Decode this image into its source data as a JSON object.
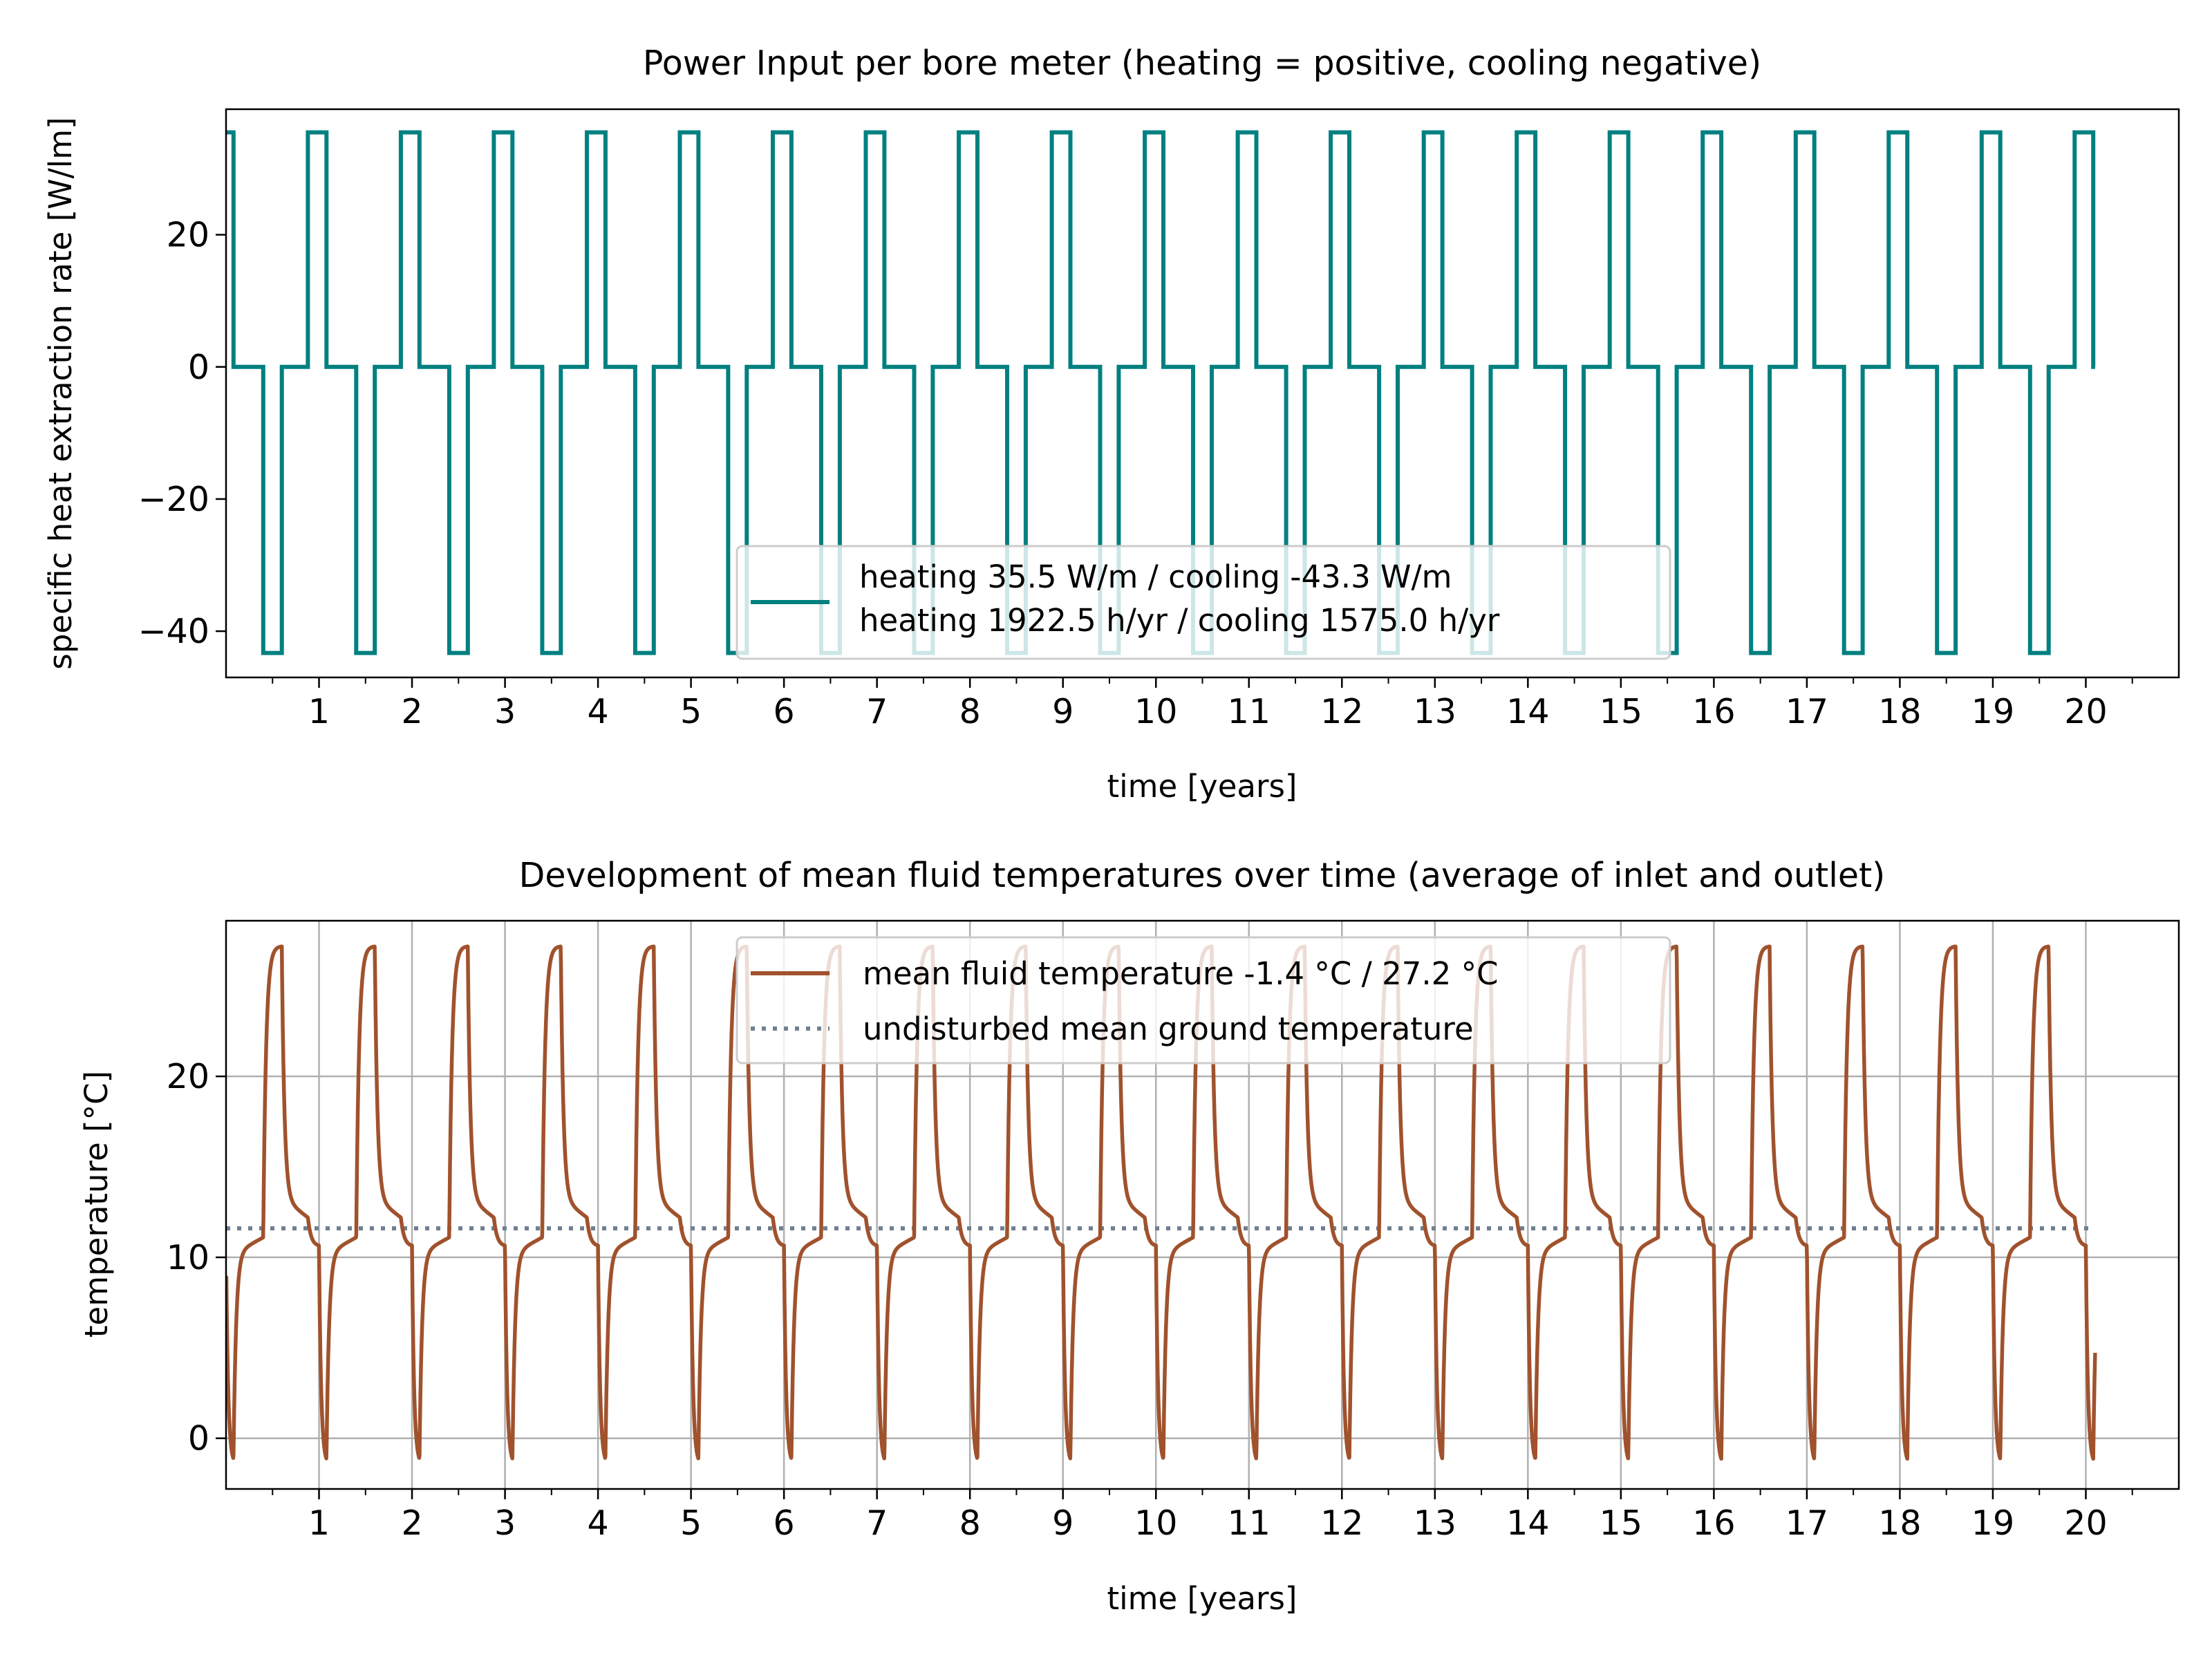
{
  "chart_data": [
    {
      "type": "line",
      "title": "Power Input per bore meter (heating = positive, cooling negative)",
      "xlabel": "time [years]",
      "ylabel": "specific heat extraction rate [W/lm]",
      "xlim": [
        0,
        21
      ],
      "ylim": [
        -47,
        39
      ],
      "xticks": [
        1,
        2,
        3,
        4,
        5,
        6,
        7,
        8,
        9,
        10,
        11,
        12,
        13,
        14,
        15,
        16,
        17,
        18,
        19,
        20
      ],
      "xtick_labels": [
        "1",
        "2",
        "3",
        "4",
        "5",
        "6",
        "7",
        "8",
        "9",
        "10",
        "11",
        "12",
        "13",
        "14",
        "15",
        "16",
        "17",
        "18",
        "19",
        "20"
      ],
      "yticks": [
        20,
        0,
        -20,
        -40
      ],
      "ytick_labels": [
        "20",
        "0",
        "−20",
        "−40"
      ],
      "grid": false,
      "legend_position": "lower-center",
      "series": [
        {
          "name": "heating 35.5 W/m / cooling -43.3 W/m\nheating 1922.5 h/yr / cooling 1575.0 h/yr",
          "legend_lines": [
            "heating 35.5 W/m / cooling -43.3 W/m",
            "heating 1922.5 h/yr / cooling 1575.0 h/yr"
          ],
          "color": "#008080",
          "heating_value": 35.5,
          "cooling_value": -43.3,
          "years": 20,
          "yearly_profile": [
            {
              "from": 0.0,
              "to": 0.08,
              "value": 35.5
            },
            {
              "from": 0.08,
              "to": 0.4,
              "value": 0
            },
            {
              "from": 0.4,
              "to": 0.6,
              "value": -43.3
            },
            {
              "from": 0.6,
              "to": 0.88,
              "value": 0
            },
            {
              "from": 0.88,
              "to": 1.0,
              "value": 35.5
            }
          ]
        }
      ]
    },
    {
      "type": "line",
      "title": "Development of mean fluid temperatures over time (average of inlet and outlet)",
      "xlabel": "time [years]",
      "ylabel": "temperature [°C]",
      "xlim": [
        0,
        21
      ],
      "ylim": [
        -2.8,
        28.6
      ],
      "xticks": [
        1,
        2,
        3,
        4,
        5,
        6,
        7,
        8,
        9,
        10,
        11,
        12,
        13,
        14,
        15,
        16,
        17,
        18,
        19,
        20
      ],
      "xtick_labels": [
        "1",
        "2",
        "3",
        "4",
        "5",
        "6",
        "7",
        "8",
        "9",
        "10",
        "11",
        "12",
        "13",
        "14",
        "15",
        "16",
        "17",
        "18",
        "19",
        "20"
      ],
      "yticks": [
        20,
        10,
        0
      ],
      "ytick_labels": [
        "20",
        "10",
        "0"
      ],
      "grid": true,
      "legend_position": "upper-center",
      "series": [
        {
          "name": "mean fluid temperature -1.4 °C / 27.2 °C",
          "color": "#a0522d",
          "style": "solid",
          "min": -1.4,
          "max": 27.2,
          "years": 20
        },
        {
          "name": "undisturbed mean ground temperature",
          "color": "#708090",
          "style": "dotted",
          "value": 11.6
        }
      ]
    }
  ]
}
